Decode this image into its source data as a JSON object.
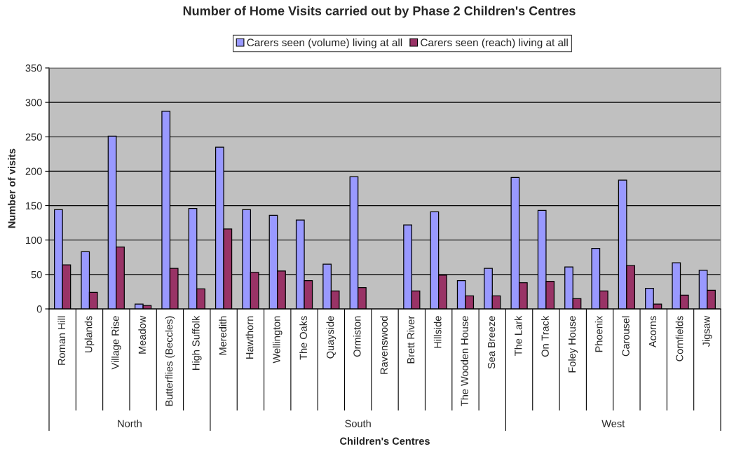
{
  "chart_data": {
    "type": "bar",
    "title": "Number of Home Visits carried out by Phase 2 Children's Centres",
    "xlabel": "Children's Centres",
    "ylabel": "Number of visits",
    "categories": [
      "Roman Hill",
      "Uplands",
      "Village Rise",
      "Meadow",
      "Butterflies (Beccles)",
      "High Suffolk",
      "Meredith",
      "Hawthorn",
      "Wellington",
      "The Oaks",
      "Quayside",
      "Ormiston",
      "Ravenswood",
      "Brett River",
      "Hillside",
      "The Wooden House",
      "Sea Breeze",
      "The Lark",
      "On Track",
      "Foley House",
      "Phoenix",
      "Carousel",
      "Acorns",
      "Cornfields",
      "Jigsaw"
    ],
    "series": [
      {
        "name": "Carers seen (volume) living at all",
        "color": "#9999ff",
        "values": [
          144,
          83,
          251,
          7,
          287,
          146,
          235,
          144,
          136,
          129,
          65,
          192,
          null,
          122,
          141,
          41,
          59,
          191,
          143,
          61,
          88,
          187,
          30,
          67,
          56
        ]
      },
      {
        "name": "Carers seen (reach) living at all",
        "color": "#993366",
        "values": [
          64,
          24,
          90,
          5,
          59,
          29,
          116,
          53,
          55,
          41,
          26,
          31,
          null,
          26,
          49,
          19,
          19,
          38,
          40,
          15,
          26,
          63,
          7,
          20,
          27
        ]
      }
    ],
    "ylim": [
      0,
      350
    ],
    "yticks": [
      0,
      50,
      100,
      150,
      200,
      250,
      300,
      350
    ],
    "grid": "y",
    "legend": "top",
    "annotations": [
      "North",
      "South",
      "West"
    ]
  }
}
